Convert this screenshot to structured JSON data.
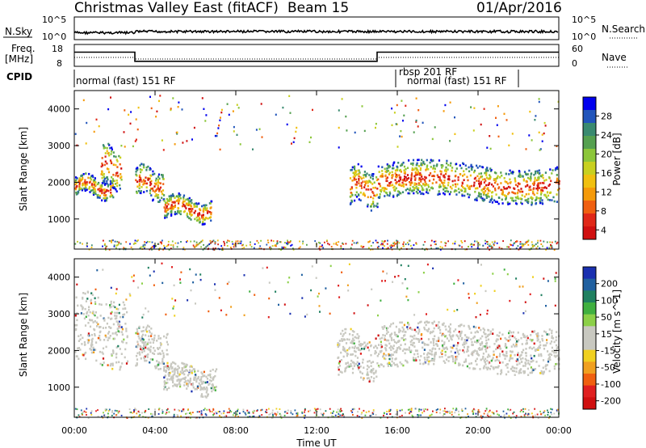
{
  "header": {
    "station_title": "Christmas Valley East (fitACF)",
    "beam_label": "Beam 15",
    "date_label": "01/Apr/2016"
  },
  "noise_panel": {
    "left_label": "N.Sky",
    "right_label": "N.Search",
    "left_ticks": [
      "10^5",
      "10^0"
    ],
    "right_ticks": [
      "10^5",
      "10^0"
    ]
  },
  "freq_panel": {
    "left_label_1": "Freq.",
    "left_label_2": "[MHz]",
    "right_label": "Nave",
    "left_ticks": [
      "18",
      "8"
    ],
    "right_ticks": [
      "60",
      "0"
    ]
  },
  "cpid": {
    "label": "CPID",
    "modes": [
      "normal (fast) 151 RF",
      "rbsp 201 RF",
      "normal (fast) 151 RF"
    ]
  },
  "power_panel": {
    "ylabel": "Slant Range [km]",
    "yticks": [
      "4000",
      "3000",
      "2000",
      "1000"
    ],
    "colorbar_label": "Power [dB]",
    "colorbar_ticks": [
      "28",
      "24",
      "20",
      "16",
      "12",
      "8",
      "4"
    ],
    "colors": [
      "#0000ee",
      "#2255bb",
      "#3a8a70",
      "#55a050",
      "#8cc63a",
      "#c8d020",
      "#f0c010",
      "#f59a0a",
      "#f06010",
      "#e02818",
      "#d01010"
    ]
  },
  "velocity_panel": {
    "ylabel": "Slant Range [km]",
    "yticks": [
      "4000",
      "3000",
      "2000",
      "1000"
    ],
    "colorbar_label": "Velocity [m s^-1]",
    "colorbar_ticks": [
      "200",
      "100",
      "50",
      "15",
      "-15",
      "-50",
      "-100",
      "-200"
    ],
    "colors": [
      "#1a30b0",
      "#2060a0",
      "#208060",
      "#40b040",
      "#8cd048",
      "#c8c8c0",
      "#c8c8c0",
      "#f0d020",
      "#f0a020",
      "#f06010",
      "#e02020",
      "#d01010"
    ]
  },
  "xaxis": {
    "label": "Time UT",
    "ticks": [
      "00:00",
      "04:00",
      "08:00",
      "12:00",
      "16:00",
      "20:00",
      "00:00"
    ]
  },
  "chart_data": {
    "type": "heatmap",
    "title": "Christmas Valley East (fitACF)",
    "subtitle": "Beam 15  01/Apr/2016",
    "xlabel": "Time UT",
    "ylabel": "Slant Range [km]",
    "xlim": [
      0,
      24
    ],
    "ylim": [
      180,
      4500
    ],
    "frequency_MHz": [
      {
        "from": 0,
        "to": 3,
        "value": 14.5
      },
      {
        "from": 3,
        "to": 15,
        "value": 10.3
      },
      {
        "from": 15,
        "to": 24,
        "value": 14.5
      }
    ],
    "power_bands": [
      {
        "t0": 0.0,
        "t1": 1.9,
        "r0": 1650,
        "r1": 2150,
        "dB": 22
      },
      {
        "t0": 1.3,
        "t1": 2.3,
        "r0": 1900,
        "r1": 3000,
        "dB": 16
      },
      {
        "t0": 3.0,
        "t1": 4.4,
        "r0": 1600,
        "r1": 2400,
        "dB": 18
      },
      {
        "t0": 4.4,
        "t1": 6.8,
        "r0": 1000,
        "r1": 1600,
        "dB": 16
      },
      {
        "t0": 13.6,
        "t1": 15.0,
        "r0": 1400,
        "r1": 2400,
        "dB": 18
      },
      {
        "t0": 15.0,
        "t1": 24.0,
        "r0": 1550,
        "r1": 2500,
        "dB": 20
      }
    ],
    "velocity_bands": [
      {
        "t0": 0.0,
        "t1": 2.6,
        "r0": 1600,
        "r1": 3500,
        "ms": 0
      },
      {
        "t0": 3.0,
        "t1": 4.6,
        "r0": 1600,
        "r1": 2600,
        "ms": 0
      },
      {
        "t0": 4.4,
        "t1": 7.0,
        "r0": 900,
        "r1": 1600,
        "ms": 0
      },
      {
        "t0": 13.0,
        "t1": 15.0,
        "r0": 1300,
        "r1": 2500,
        "ms": 0
      },
      {
        "t0": 15.0,
        "t1": 24.0,
        "r0": 1500,
        "r1": 2700,
        "ms": 0
      }
    ],
    "grid": false,
    "legend": "right"
  }
}
